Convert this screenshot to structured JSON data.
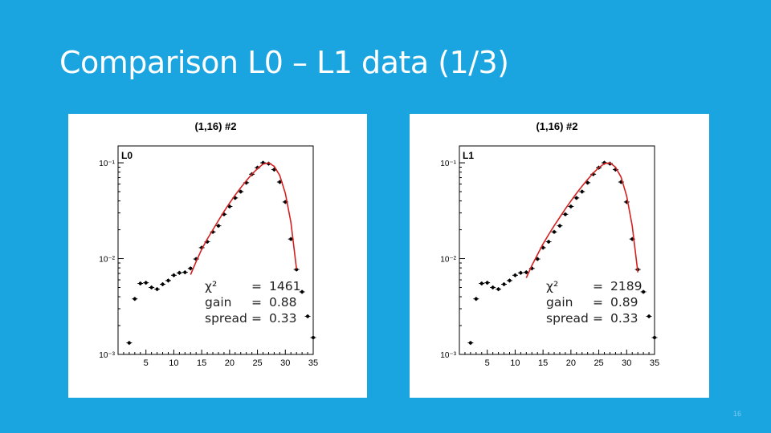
{
  "slide": {
    "title": "Comparison L0 – L1 data (1/3)",
    "page_number": "16"
  },
  "colors": {
    "background": "#1ba5e0",
    "fit_line": "#d42020",
    "points": "#000000"
  },
  "chart_data": [
    {
      "type": "scatter",
      "title": "(1,16) #2",
      "label": "L0",
      "xlim": [
        0,
        35
      ],
      "ylim": [
        0.001,
        0.15
      ],
      "yscale": "log",
      "xticks": [
        "5",
        "10",
        "15",
        "20",
        "25",
        "30",
        "35"
      ],
      "yticks": [
        "10⁻³",
        "10⁻²",
        "10⁻¹"
      ],
      "x": [
        2,
        3,
        4,
        5,
        6,
        7,
        8,
        9,
        10,
        11,
        12,
        13,
        14,
        15,
        16,
        17,
        18,
        19,
        20,
        21,
        22,
        23,
        24,
        25,
        26,
        27,
        28,
        29,
        30,
        31,
        32,
        33,
        34,
        35
      ],
      "y": [
        0.00132,
        0.0038,
        0.0055,
        0.0056,
        0.005,
        0.0048,
        0.0054,
        0.0059,
        0.0067,
        0.0071,
        0.0072,
        0.0079,
        0.0099,
        0.013,
        0.015,
        0.019,
        0.022,
        0.029,
        0.035,
        0.043,
        0.05,
        0.062,
        0.076,
        0.089,
        0.1,
        0.098,
        0.085,
        0.063,
        0.039,
        0.016,
        0.0077,
        0.0045,
        0.0025,
        0.0015
      ],
      "fit": {
        "x": [
          13,
          14,
          15,
          16,
          17,
          18,
          19,
          20,
          21,
          22,
          23,
          24,
          25,
          26,
          27,
          28,
          29,
          30,
          31,
          32
        ],
        "y": [
          0.0068,
          0.0093,
          0.0125,
          0.016,
          0.02,
          0.025,
          0.031,
          0.038,
          0.046,
          0.055,
          0.065,
          0.076,
          0.087,
          0.097,
          0.1,
          0.092,
          0.074,
          0.048,
          0.024,
          0.0078
        ]
      },
      "stats": {
        "chi2_label": "χ²",
        "chi2": "1461",
        "gain_label": "gain",
        "gain": "0.88",
        "spread_label": "spread",
        "spread": "0.33",
        "eq": "="
      }
    },
    {
      "type": "scatter",
      "title": "(1,16) #2",
      "label": "L1",
      "xlim": [
        0,
        35
      ],
      "ylim": [
        0.001,
        0.15
      ],
      "yscale": "log",
      "xticks": [
        "5",
        "10",
        "15",
        "20",
        "25",
        "30",
        "35"
      ],
      "yticks": [
        "10⁻³",
        "10⁻²",
        "10⁻¹"
      ],
      "x": [
        2,
        3,
        4,
        5,
        6,
        7,
        8,
        9,
        10,
        11,
        12,
        13,
        14,
        15,
        16,
        17,
        18,
        19,
        20,
        21,
        22,
        23,
        24,
        25,
        26,
        27,
        28,
        29,
        30,
        31,
        32,
        33,
        34,
        35
      ],
      "y": [
        0.00132,
        0.0038,
        0.0055,
        0.0056,
        0.005,
        0.0048,
        0.0054,
        0.0059,
        0.0067,
        0.0071,
        0.0072,
        0.0079,
        0.0099,
        0.013,
        0.015,
        0.019,
        0.022,
        0.029,
        0.035,
        0.043,
        0.05,
        0.062,
        0.076,
        0.089,
        0.1,
        0.098,
        0.085,
        0.063,
        0.039,
        0.016,
        0.0077,
        0.0045,
        0.0025,
        0.0015
      ],
      "fit": {
        "x": [
          12,
          13,
          14,
          15,
          16,
          17,
          18,
          19,
          20,
          21,
          22,
          23,
          24,
          25,
          26,
          27,
          28,
          29,
          30,
          31,
          32
        ],
        "y": [
          0.0063,
          0.0085,
          0.011,
          0.0142,
          0.0178,
          0.022,
          0.027,
          0.033,
          0.04,
          0.048,
          0.057,
          0.067,
          0.078,
          0.089,
          0.098,
          0.1,
          0.09,
          0.071,
          0.045,
          0.022,
          0.0072
        ]
      },
      "stats": {
        "chi2_label": "χ²",
        "chi2": "2189",
        "gain_label": "gain",
        "gain": "0.89",
        "spread_label": "spread",
        "spread": "0.33",
        "eq": "="
      }
    }
  ]
}
